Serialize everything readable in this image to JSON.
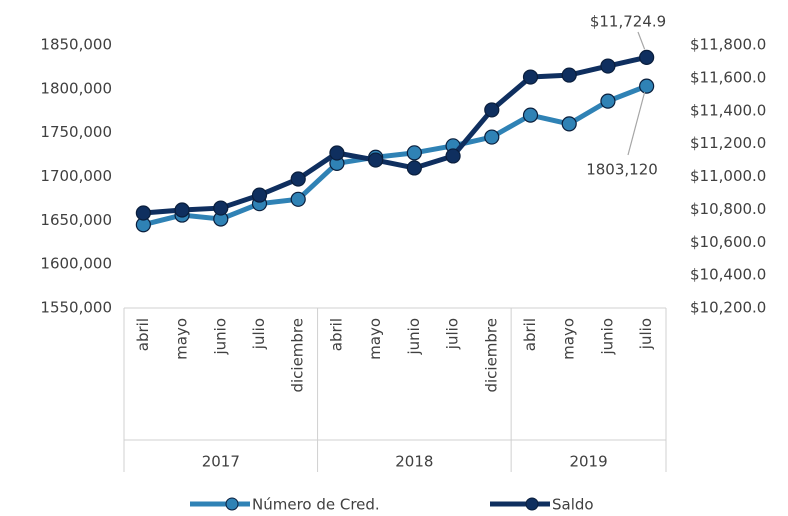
{
  "chart_data": {
    "type": "line",
    "groups": [
      {
        "label": "2017",
        "months": [
          "abril",
          "mayo",
          "junio",
          "julio",
          "diciembre"
        ]
      },
      {
        "label": "2018",
        "months": [
          "abril",
          "mayo",
          "junio",
          "julio",
          "diciembre"
        ]
      },
      {
        "label": "2019",
        "months": [
          "abril",
          "mayo",
          "junio",
          "julio"
        ]
      }
    ],
    "series": [
      {
        "name": "Número de Cred.",
        "color": "#2f82b5",
        "axis": "y",
        "values": [
          1645000,
          1656000,
          1651500,
          1669000,
          1674000,
          1715000,
          1722000,
          1727000,
          1735000,
          1745000,
          1770000,
          1760000,
          1786000,
          1803120
        ],
        "value_labels": [
          null,
          null,
          null,
          null,
          null,
          null,
          null,
          null,
          null,
          null,
          null,
          null,
          null,
          "1803,120"
        ]
      },
      {
        "name": "Saldo",
        "color": "#0f2f5f",
        "axis": "y2",
        "values": [
          10778,
          10796,
          10808,
          10887,
          10985,
          11143,
          11100,
          11052,
          11125,
          11405,
          11605,
          11617,
          11672,
          11724.9
        ],
        "value_labels": [
          null,
          null,
          null,
          null,
          null,
          null,
          null,
          null,
          null,
          null,
          null,
          null,
          null,
          "$11,724.9"
        ]
      }
    ],
    "ylim": [
      1550000,
      1850000
    ],
    "yticks": [
      {
        "value": 1550000,
        "label": "1550,000"
      },
      {
        "value": 1600000,
        "label": "1600,000"
      },
      {
        "value": 1650000,
        "label": "1650,000"
      },
      {
        "value": 1700000,
        "label": "1700,000"
      },
      {
        "value": 1750000,
        "label": "1750,000"
      },
      {
        "value": 1800000,
        "label": "1800,000"
      },
      {
        "value": 1850000,
        "label": "1850,000"
      }
    ],
    "y2lim": [
      10200,
      11800
    ],
    "y2ticks": [
      {
        "value": 10200,
        "label": "$10,200.0"
      },
      {
        "value": 10400,
        "label": "$10,400.0"
      },
      {
        "value": 10600,
        "label": "$10,600.0"
      },
      {
        "value": 10800,
        "label": "$10,800.0"
      },
      {
        "value": 11000,
        "label": "$11,000.0"
      },
      {
        "value": 11200,
        "label": "$11,200.0"
      },
      {
        "value": 11400,
        "label": "$11,400.0"
      },
      {
        "value": 11600,
        "label": "$11,600.0"
      },
      {
        "value": 11800,
        "label": "$11,800.0"
      }
    ],
    "legend": "bottom"
  }
}
